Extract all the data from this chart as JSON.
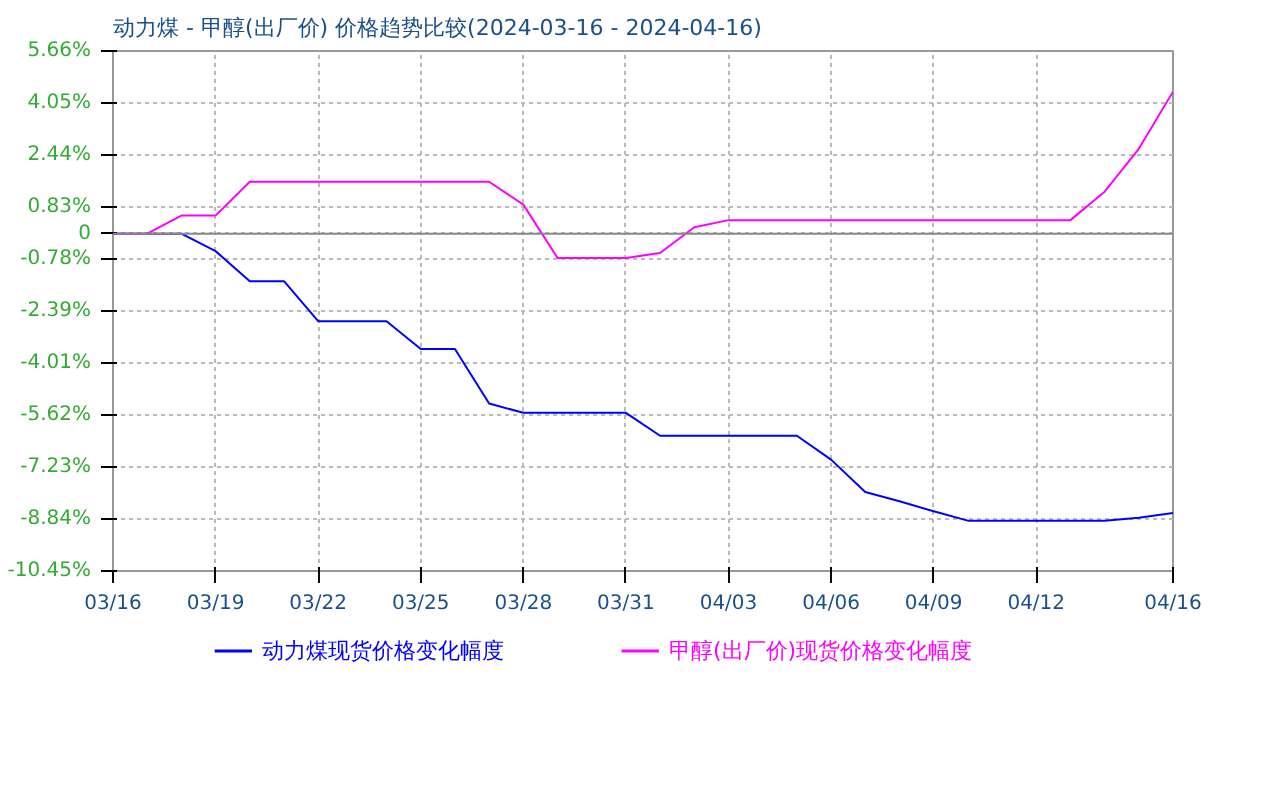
{
  "chart_data": {
    "type": "line",
    "title": "动力煤 - 甲醇(出厂价) 价格趋势比较(2024-03-16 - 2024-04-16)",
    "x": [
      "2024-03-16",
      "2024-03-17",
      "2024-03-18",
      "2024-03-19",
      "2024-03-20",
      "2024-03-21",
      "2024-03-22",
      "2024-03-23",
      "2024-03-24",
      "2024-03-25",
      "2024-03-26",
      "2024-03-27",
      "2024-03-28",
      "2024-03-29",
      "2024-03-30",
      "2024-03-31",
      "2024-04-01",
      "2024-04-02",
      "2024-04-03",
      "2024-04-04",
      "2024-04-05",
      "2024-04-06",
      "2024-04-07",
      "2024-04-08",
      "2024-04-09",
      "2024-04-10",
      "2024-04-11",
      "2024-04-12",
      "2024-04-13",
      "2024-04-14",
      "2024-04-15",
      "2024-04-16"
    ],
    "series": [
      {
        "name": "动力煤现货价格变化幅度",
        "color": "#0000ff",
        "values": [
          0,
          0,
          0,
          -0.54,
          -1.47,
          -1.47,
          -2.71,
          -2.71,
          -2.71,
          -3.57,
          -3.57,
          -5.26,
          -5.55,
          -5.55,
          -5.55,
          -5.55,
          -6.26,
          -6.26,
          -6.26,
          -6.26,
          -6.26,
          -7.0,
          -8.0,
          -8.29,
          -8.6,
          -8.89,
          -8.89,
          -8.89,
          -8.89,
          -8.89,
          -8.8,
          -8.65
        ]
      },
      {
        "name": "甲醇(出厂价)现货价格变化幅度",
        "color": "#ff00ff",
        "values": [
          0,
          0,
          0.56,
          0.56,
          1.61,
          1.61,
          1.61,
          1.61,
          1.61,
          1.61,
          1.61,
          1.61,
          0.9,
          -0.75,
          -0.75,
          -0.75,
          -0.6,
          0.2,
          0.42,
          0.42,
          0.42,
          0.42,
          0.42,
          0.42,
          0.42,
          0.42,
          0.42,
          0.42,
          0.42,
          1.3,
          2.63,
          4.4
        ]
      }
    ],
    "xlim": [
      "2024-03-16",
      "2024-04-16"
    ],
    "xticks": [
      {
        "value": "2024-03-16",
        "label": "03/16"
      },
      {
        "value": "2024-03-19",
        "label": "03/19"
      },
      {
        "value": "2024-03-22",
        "label": "03/22"
      },
      {
        "value": "2024-03-25",
        "label": "03/25"
      },
      {
        "value": "2024-03-28",
        "label": "03/28"
      },
      {
        "value": "2024-03-31",
        "label": "03/31"
      },
      {
        "value": "2024-04-03",
        "label": "04/03"
      },
      {
        "value": "2024-04-06",
        "label": "04/06"
      },
      {
        "value": "2024-04-09",
        "label": "04/09"
      },
      {
        "value": "2024-04-12",
        "label": "04/12"
      },
      {
        "value": "2024-04-16",
        "label": "04/16"
      }
    ],
    "ylim": [
      -10.45,
      5.66
    ],
    "yticks": [
      {
        "value": 5.66,
        "label": "5.66%"
      },
      {
        "value": 4.05,
        "label": "4.05%"
      },
      {
        "value": 2.44,
        "label": "2.44%"
      },
      {
        "value": 0.83,
        "label": "0.83%"
      },
      0,
      {
        "value": -0.78,
        "label": "-0.78%"
      },
      {
        "value": -2.39,
        "label": "-2.39%"
      },
      {
        "value": -4.01,
        "label": "-4.01%"
      },
      {
        "value": -5.62,
        "label": "-5.62%"
      },
      {
        "value": -7.23,
        "label": "-7.23%"
      },
      {
        "value": -8.84,
        "label": "-8.84%"
      },
      {
        "value": -10.45,
        "label": "-10.45%"
      }
    ],
    "ref_lines": [
      {
        "axis": "y",
        "value": 0,
        "color": "#888888"
      }
    ],
    "grid": true,
    "legend": "bottom",
    "marker": "none",
    "line_style": "solid"
  }
}
